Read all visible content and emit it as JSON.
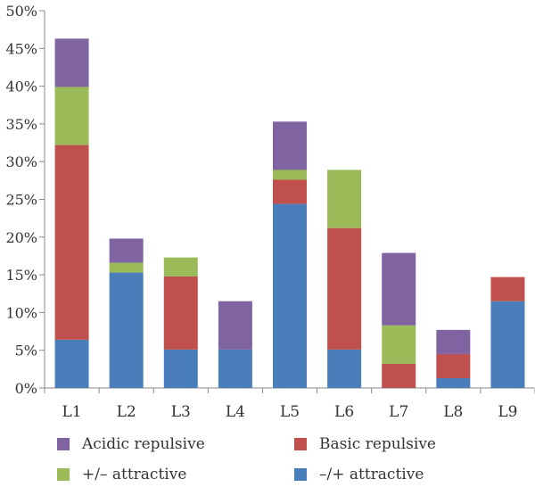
{
  "chart_data": {
    "type": "bar",
    "stacked": true,
    "categories": [
      "L1",
      "L2",
      "L3",
      "L4",
      "L5",
      "L6",
      "L7",
      "L8",
      "L9"
    ],
    "series": [
      {
        "name": "–/+ attractive",
        "color": "#4a7ebb",
        "values": [
          6.4,
          15.3,
          5.1,
          5.1,
          24.4,
          5.1,
          0,
          1.3,
          11.5
        ]
      },
      {
        "name": "Basic repulsive",
        "color": "#c0504d",
        "values": [
          25.8,
          0,
          9.7,
          0,
          3.2,
          16.1,
          3.2,
          3.2,
          3.2
        ]
      },
      {
        "name": "+/– attractive",
        "color": "#9bbb59",
        "values": [
          7.7,
          1.3,
          2.5,
          0,
          1.3,
          7.7,
          5.1,
          0,
          0
        ]
      },
      {
        "name": "Acidic repulsive",
        "color": "#8064a2",
        "values": [
          6.4,
          3.2,
          0,
          6.4,
          6.4,
          0,
          9.6,
          3.2,
          0
        ]
      }
    ],
    "y_tick_labels": [
      "0%",
      "5%",
      "10%",
      "15%",
      "20%",
      "25%",
      "30%",
      "35%",
      "40%",
      "45%",
      "50%"
    ],
    "ylim": [
      0,
      50
    ],
    "y_unit": "%",
    "grid": false,
    "legend_position": "bottom",
    "legend_order": [
      "Acidic repulsive",
      "Basic repulsive",
      "+/– attractive",
      "–/+ attractive"
    ],
    "title": "",
    "xlabel": "",
    "ylabel": ""
  }
}
